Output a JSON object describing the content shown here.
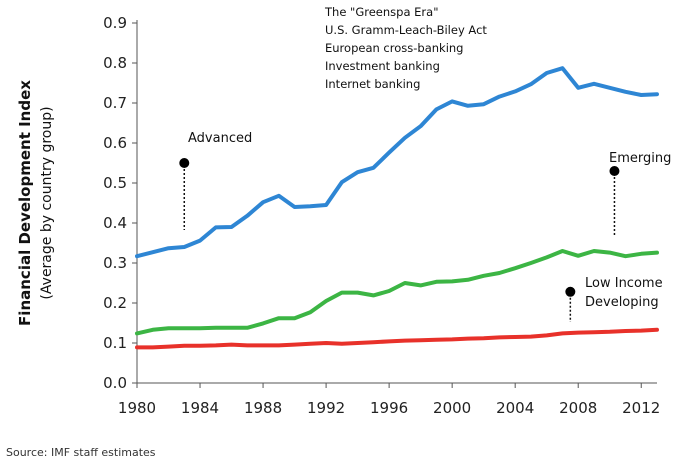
{
  "chart_data": {
    "type": "line",
    "ylabel": "Financial Development Index",
    "ylabel_sub": "(Average by country group)",
    "ylim": [
      0.0,
      0.9
    ],
    "yticks": [
      "0.0",
      "0.1",
      "0.2",
      "0.3",
      "0.4",
      "0.5",
      "0.6",
      "0.7",
      "0.8",
      "0.9"
    ],
    "xlim": [
      1980,
      2013
    ],
    "xticks": [
      "1980",
      "1984",
      "1988",
      "1992",
      "1996",
      "2000",
      "2004",
      "2008",
      "2012"
    ],
    "grid": false,
    "x": [
      1980,
      1981,
      1982,
      1983,
      1984,
      1985,
      1986,
      1987,
      1988,
      1989,
      1990,
      1991,
      1992,
      1993,
      1994,
      1995,
      1996,
      1997,
      1998,
      1999,
      2000,
      2001,
      2002,
      2003,
      2004,
      2005,
      2006,
      2007,
      2008,
      2009,
      2010,
      2011,
      2012,
      2013
    ],
    "series": [
      {
        "color": "#2e86d4",
        "values": [
          0.317,
          0.327,
          0.337,
          0.34,
          0.356,
          0.389,
          0.39,
          0.418,
          0.452,
          0.468,
          0.44,
          0.442,
          0.445,
          0.502,
          0.527,
          0.538,
          0.576,
          0.613,
          0.642,
          0.684,
          0.704,
          0.693,
          0.697,
          0.716,
          0.729,
          0.747,
          0.775,
          0.787,
          0.738,
          0.748,
          0.738,
          0.728,
          0.72,
          0.722
        ]
      },
      {
        "color": "#3cb544",
        "values": [
          0.124,
          0.133,
          0.137,
          0.137,
          0.137,
          0.138,
          0.138,
          0.138,
          0.149,
          0.162,
          0.162,
          0.177,
          0.205,
          0.226,
          0.226,
          0.219,
          0.23,
          0.25,
          0.244,
          0.253,
          0.254,
          0.258,
          0.268,
          0.275,
          0.287,
          0.3,
          0.314,
          0.33,
          0.318,
          0.33,
          0.326,
          0.317,
          0.323,
          0.326
        ]
      },
      {
        "color": "#e8312a",
        "values": [
          0.089,
          0.089,
          0.091,
          0.093,
          0.093,
          0.094,
          0.096,
          0.094,
          0.094,
          0.094,
          0.096,
          0.098,
          0.1,
          0.098,
          0.1,
          0.102,
          0.104,
          0.106,
          0.107,
          0.108,
          0.109,
          0.111,
          0.112,
          0.114,
          0.115,
          0.116,
          0.119,
          0.124,
          0.126,
          0.127,
          0.128,
          0.13,
          0.131,
          0.133
        ]
      }
    ],
    "annotations": [
      {
        "text": "Advanced",
        "year": 1983,
        "value": 0.55
      },
      {
        "text": "Emerging",
        "year": 2010.3,
        "value": 0.53
      },
      {
        "text": [
          "Low Income",
          "Developing"
        ],
        "year": 2007.5,
        "value": 0.228
      }
    ],
    "notes": [
      "The \"Greenspa Era\"",
      "U.S. Gramm-Leach-Biley Act",
      "European cross-banking",
      "Investment banking",
      "Internet banking"
    ]
  },
  "source": "Source: IMF staff estimates"
}
